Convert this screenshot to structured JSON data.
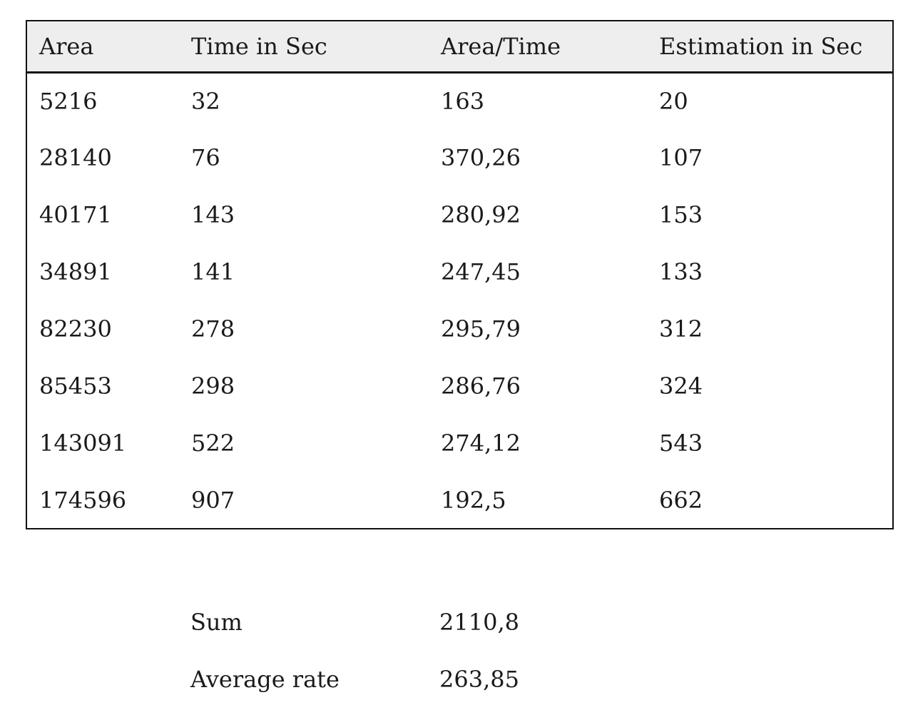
{
  "page": {
    "background": "#ffffff",
    "text_color": "#1a1a1a"
  },
  "table": {
    "header_bg": "#eeeeee",
    "border_color": "#111111",
    "columns": [
      "Area",
      "Time in Sec",
      "Area/Time",
      "Estimation in Sec"
    ],
    "rows": [
      [
        "5216",
        "32",
        "163",
        "20"
      ],
      [
        "28140",
        "76",
        "370,26",
        "107"
      ],
      [
        "40171",
        "143",
        "280,92",
        "153"
      ],
      [
        "34891",
        "141",
        "247,45",
        "133"
      ],
      [
        "82230",
        "278",
        "295,79",
        "312"
      ],
      [
        "85453",
        "298",
        "286,76",
        "324"
      ],
      [
        "143091",
        "522",
        "274,12",
        "543"
      ],
      [
        "174596",
        "907",
        "192,5",
        "662"
      ]
    ]
  },
  "summary": {
    "sum_label": "Sum",
    "sum_value": "2110,8",
    "average_label": "Average rate",
    "average_value": "263,85"
  }
}
